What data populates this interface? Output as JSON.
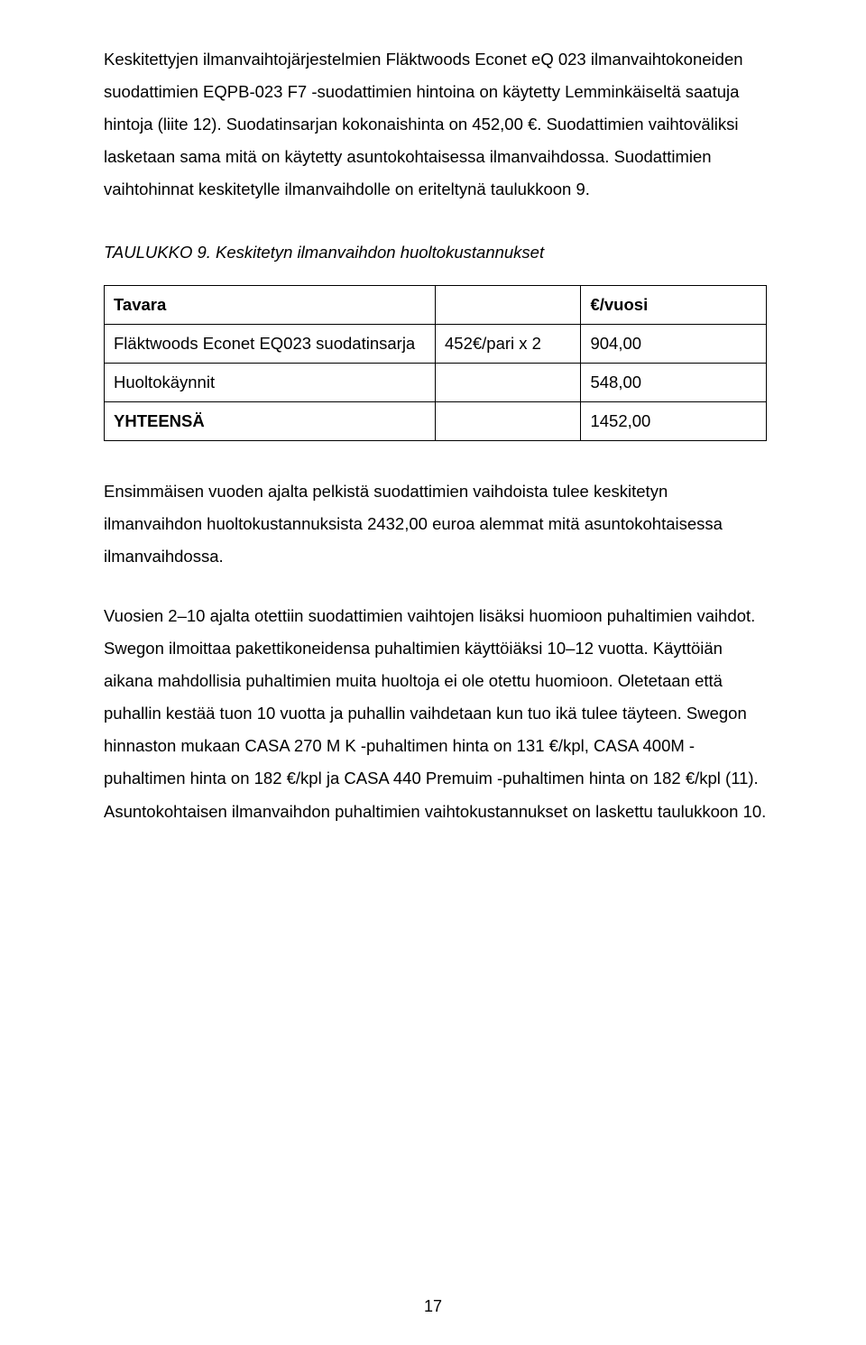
{
  "paragraphs": {
    "intro": "Keskitettyjen ilmanvaihtojärjestelmien Fläktwoods Econet eQ 023 ilmanvaihtokoneiden suodattimien EQPB-023 F7 -suodattimien hintoina on käytetty Lemminkäiseltä saatuja hintoja (liite 12). Suodatinsarjan kokonaishinta on 452,00 €. Suodattimien vaihtoväliksi lasketaan sama mitä on käytetty asuntokohtaisessa ilmanvaihdossa. Suodattimien vaihtohinnat keskitetylle ilmanvaihdolle on eriteltynä taulukkoon 9.",
    "mid": "Ensimmäisen vuoden ajalta pelkistä suodattimien vaihdoista tulee keskitetyn ilmanvaihdon huoltokustannuksista 2432,00 euroa alemmat mitä asuntokohtaisessa ilmanvaihdossa.",
    "outro": "Vuosien 2–10 ajalta otettiin suodattimien vaihtojen lisäksi huomioon puhaltimien vaihdot. Swegon ilmoittaa pakettikoneidensa puhaltimien käyttöiäksi 10–12 vuotta. Käyttöiän aikana mahdollisia puhaltimien muita huoltoja ei ole otettu huomioon. Oletetaan että puhallin kestää tuon 10 vuotta ja puhallin vaihdetaan kun tuo ikä tulee täyteen. Swegon hinnaston mukaan CASA 270 M K -puhaltimen hinta on 131 €/kpl, CASA 400M -puhaltimen hinta on 182 €/kpl ja CASA 440 Premuim -puhaltimen hinta on 182 €/kpl (11). Asuntokohtaisen ilmanvaihdon puhaltimien vaihtokustannukset on laskettu taulukkoon 10."
  },
  "table": {
    "caption": "TAULUKKO 9. Keskitetyn ilmanvaihdon huoltokustannukset",
    "columns": [
      "col-a",
      "col-b",
      "col-c"
    ],
    "header": {
      "label": "Tavara",
      "unit": "€/vuosi"
    },
    "rows": [
      {
        "label": "Fläktwoods Econet EQ023 suodatinsarja",
        "calc": "452€/pari x 2",
        "value": "904,00",
        "bold_label": false
      },
      {
        "label": "Huoltokäynnit",
        "calc": "",
        "value": "548,00",
        "bold_label": false
      },
      {
        "label": "YHTEENSÄ",
        "calc": "",
        "value": "1452,00",
        "bold_label": true
      }
    ]
  },
  "page_number": "17",
  "colors": {
    "text": "#000000",
    "background": "#ffffff",
    "border": "#000000"
  }
}
